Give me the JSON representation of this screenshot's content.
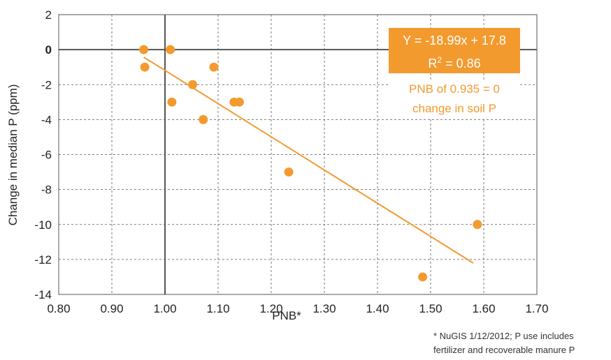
{
  "chart_data": {
    "type": "scatter",
    "xlabel": "PNB*",
    "ylabel": "Change in median P (ppm)",
    "xlim": [
      0.8,
      1.7
    ],
    "ylim": [
      -14,
      2
    ],
    "x_ticks": [
      "0.80",
      "0.90",
      "1.00",
      "1.10",
      "1.20",
      "1.30",
      "1.40",
      "1.50",
      "1.60",
      "1.70"
    ],
    "y_ticks": [
      "2",
      "0",
      "-2",
      "-4",
      "-6",
      "-8",
      "-10",
      "-12",
      "-14"
    ],
    "grid": true,
    "points": [
      {
        "x": 0.96,
        "y": 0
      },
      {
        "x": 0.962,
        "y": -1
      },
      {
        "x": 1.01,
        "y": 0
      },
      {
        "x": 1.013,
        "y": -3
      },
      {
        "x": 1.052,
        "y": -2
      },
      {
        "x": 1.072,
        "y": -4
      },
      {
        "x": 1.092,
        "y": -1
      },
      {
        "x": 1.13,
        "y": -3
      },
      {
        "x": 1.14,
        "y": -3
      },
      {
        "x": 1.233,
        "y": -7
      },
      {
        "x": 1.485,
        "y": -13
      },
      {
        "x": 1.588,
        "y": -10
      }
    ],
    "trendline": {
      "slope": -18.99,
      "intercept": 17.8,
      "x_start": 0.96,
      "x_end": 1.58
    },
    "equation": "Y = -18.99x + 17.8",
    "r2_label": "R",
    "r2_sup": "2",
    "r2_value": " = 0.86",
    "annotation_line1": "PNB of 0.935 = 0",
    "annotation_line2": "change in soil P",
    "colors": {
      "points": "#f39a2e",
      "line": "#f39a2e",
      "grid": "#555555",
      "axis": "#555555"
    }
  },
  "footnote": {
    "line1": "* NuGIS 1/12/2012; P use includes",
    "line2": "fertilizer and recoverable manure P"
  }
}
